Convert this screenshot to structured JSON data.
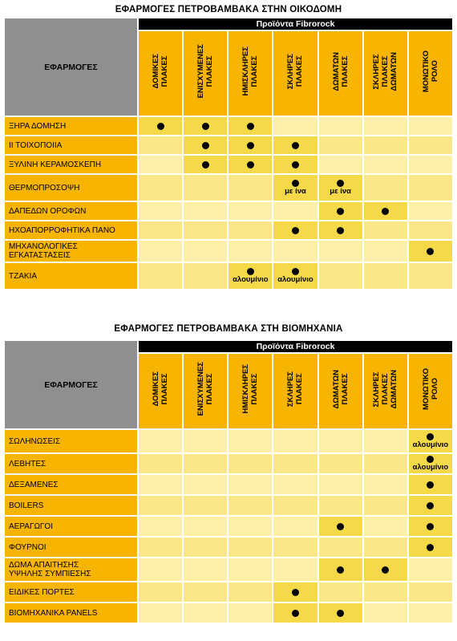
{
  "section1": {
    "title": "ΕΦΑΡΜΟΓΕΣ ΠΕΤΡΟΒΑΜΒΑΚΑ ΣΤΗΝ ΟΙΚΟΔΟΜΗ",
    "apps_header": "ΕΦΑΡΜΟΓΕΣ",
    "brand_header": "Προϊόντα Fibrorock",
    "columns": [
      "ΔΟΜΙΚΕΣ\nΠΛΑΚΕΣ",
      "ΕΝΙΣΧΥΜΕΝΕΣ\nΠΛΑΚΕΣ",
      "ΗΜΙΣΚΛΗΡΕΣ\nΠΛΑΚΕΣ",
      "ΣΚΛΗΡΕΣ\nΠΛΑΚΕΣ",
      "ΔΩΜΑΤΩΝ\nΠΛΑΚΕΣ",
      "ΣΚΛΗΡΕΣ\nΠΛΑΚΕΣ\nΔΩΜΑΤΩΝ",
      "ΜΟΝΩΤΙΚΟ\nΡΟΛΟ"
    ],
    "rows": [
      {
        "label": "ΞΗΡΑ ΔΟΜΗΣΗ",
        "marks": [
          1,
          1,
          1,
          0,
          0,
          0,
          0
        ],
        "notes": [
          "",
          "",
          "",
          "",
          "",
          "",
          ""
        ]
      },
      {
        "label": "ΙΙ ΤΟΙΧΟΠΟΙΙΑ",
        "marks": [
          0,
          1,
          1,
          1,
          0,
          0,
          0
        ],
        "notes": [
          "",
          "",
          "",
          "",
          "",
          "",
          ""
        ]
      },
      {
        "label": "ΞΥΛΙΝΗ ΚΕΡΑΜΟΣΚΕΠΗ",
        "marks": [
          0,
          1,
          1,
          1,
          0,
          0,
          0
        ],
        "notes": [
          "",
          "",
          "",
          "",
          "",
          "",
          ""
        ]
      },
      {
        "label": "ΘΕΡΜΟΠΡΟΣΟΨΗ",
        "marks": [
          0,
          0,
          0,
          1,
          1,
          0,
          0
        ],
        "notes": [
          "",
          "",
          "",
          "με ίνα",
          "με ίνα",
          "",
          ""
        ]
      },
      {
        "label": "ΔΑΠΕΔΩΝ ΟΡΟΦΩΝ",
        "marks": [
          0,
          0,
          0,
          0,
          1,
          1,
          0
        ],
        "notes": [
          "",
          "",
          "",
          "",
          "",
          "",
          ""
        ]
      },
      {
        "label": "ΗΧΟΑΠΟΡΡΟΦΗΤΙΚΑ ΠΑΝΟ",
        "marks": [
          0,
          0,
          0,
          1,
          1,
          0,
          0
        ],
        "notes": [
          "",
          "",
          "",
          "",
          "",
          "",
          ""
        ]
      },
      {
        "label": "ΜΗΧΑΝΟΛΟΓΙΚΕΣ\nΕΓΚΑΤΑΣΤΑΣΕΙΣ",
        "marks": [
          0,
          0,
          0,
          0,
          0,
          0,
          1
        ],
        "notes": [
          "",
          "",
          "",
          "",
          "",
          "",
          ""
        ]
      },
      {
        "label": "ΤΖΑΚΙΑ",
        "marks": [
          0,
          0,
          1,
          1,
          0,
          0,
          0
        ],
        "notes": [
          "",
          "",
          "αλουμίνιο",
          "αλουμίνιο",
          "",
          "",
          ""
        ]
      }
    ]
  },
  "section2": {
    "title": "ΕΦΑΡΜΟΓΕΣ ΠΕΤΡΟΒΑΜΒΑΚΑ ΣΤΗ ΒΙΟΜΗΧΑΝΙΑ",
    "apps_header": "ΕΦΑΡΜΟΓΕΣ",
    "brand_header": "Προϊόντα Fibrorock",
    "columns": [
      "ΔΟΜΙΚΕΣ\nΠΛΑΚΕΣ",
      "ΕΝΙΣΧΥΜΕΝΕΣ\nΠΛΑΚΕΣ",
      "ΗΜΙΣΚΛΗΡΕΣ\nΠΛΑΚΕΣ",
      "ΣΚΛΗΡΕΣ\nΠΛΑΚΕΣ",
      "ΔΩΜΑΤΩΝ\nΠΛΑΚΕΣ",
      "ΣΚΛΗΡΕΣ\nΠΛΑΚΕΣ\nΔΩΜΑΤΩΝ",
      "ΜΟΝΩΤΙΚΟ\nΡΟΛΟ"
    ],
    "rows": [
      {
        "label": "ΣΩΛΗΝΩΣΕΙΣ",
        "marks": [
          0,
          0,
          0,
          0,
          0,
          0,
          1
        ],
        "notes": [
          "",
          "",
          "",
          "",
          "",
          "",
          "αλουμίνιο"
        ]
      },
      {
        "label": "ΛΕΒΗΤΕΣ",
        "marks": [
          0,
          0,
          0,
          0,
          0,
          0,
          1
        ],
        "notes": [
          "",
          "",
          "",
          "",
          "",
          "",
          "αλουμίνιο"
        ]
      },
      {
        "label": "ΔΕΞΑΜΕΝΕΣ",
        "marks": [
          0,
          0,
          0,
          0,
          0,
          0,
          1
        ],
        "notes": [
          "",
          "",
          "",
          "",
          "",
          "",
          ""
        ]
      },
      {
        "label": "BOILERS",
        "marks": [
          0,
          0,
          0,
          0,
          0,
          0,
          1
        ],
        "notes": [
          "",
          "",
          "",
          "",
          "",
          "",
          ""
        ]
      },
      {
        "label": "ΑΕΡΑΓΩΓΟΙ",
        "marks": [
          0,
          0,
          0,
          0,
          1,
          0,
          1
        ],
        "notes": [
          "",
          "",
          "",
          "",
          "",
          "",
          ""
        ]
      },
      {
        "label": "ΦΟΥΡΝΟΙ",
        "marks": [
          0,
          0,
          0,
          0,
          0,
          0,
          1
        ],
        "notes": [
          "",
          "",
          "",
          "",
          "",
          "",
          ""
        ]
      },
      {
        "label": "ΔΩΜΑ ΑΠΑΙΤΗΣΗΣ\nΥΨΗΛΗΣ ΣΥΜΠΙΕΣΗΣ",
        "marks": [
          0,
          0,
          0,
          0,
          1,
          1,
          0
        ],
        "notes": [
          "",
          "",
          "",
          "",
          "",
          "",
          ""
        ]
      },
      {
        "label": "ΕΙΔΙΚΕΣ ΠΟΡΤΕΣ",
        "marks": [
          0,
          0,
          0,
          1,
          0,
          0,
          0
        ],
        "notes": [
          "",
          "",
          "",
          "",
          "",
          "",
          ""
        ]
      },
      {
        "label": "ΒΙΟΜΗΧΑΝΙΚΑ PANELS",
        "marks": [
          0,
          0,
          0,
          1,
          1,
          0,
          0
        ],
        "notes": [
          "",
          "",
          "",
          "",
          "",
          "",
          ""
        ]
      }
    ]
  }
}
